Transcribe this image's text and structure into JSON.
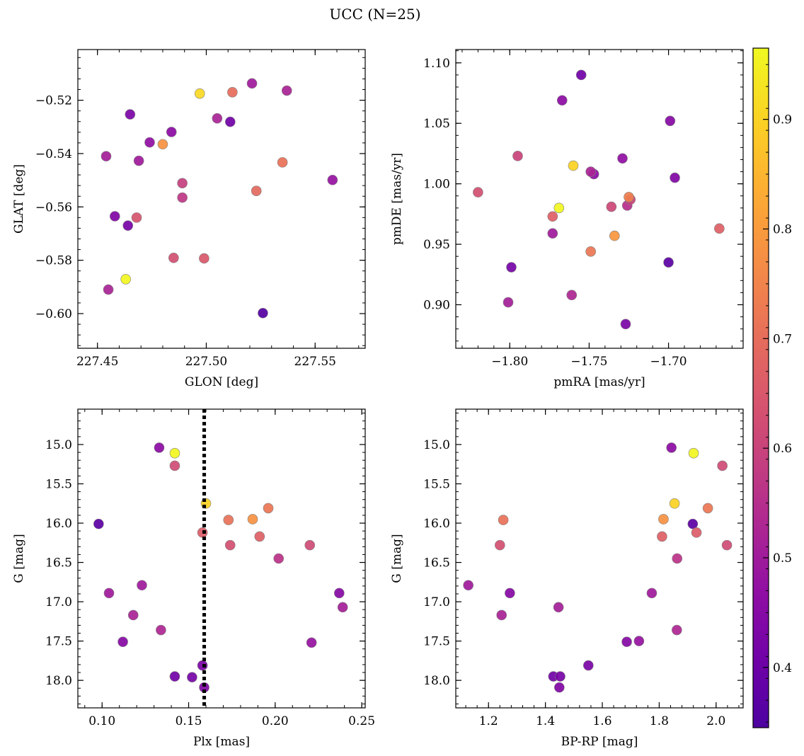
{
  "figure_title": "UCC (N=25)",
  "colorbar": {
    "ticks": [
      0.4,
      0.5,
      0.6,
      0.7,
      0.8,
      0.9
    ],
    "tick_labels": [
      "0.4",
      "0.5",
      "0.6",
      "0.7",
      "0.8",
      "0.9"
    ],
    "range": [
      0.345,
      0.965
    ],
    "colormap": "plasma"
  },
  "colors": {
    "reference_line": "#000000",
    "marker_edge": "#808080"
  },
  "chart_data": [
    {
      "type": "scatter",
      "id": "glon-glat",
      "xlabel": "GLON [deg]",
      "ylabel": "GLAT [deg]",
      "xlim": [
        227.441,
        227.573
      ],
      "ylim": [
        -0.613,
        -0.501
      ],
      "xticks": [
        227.45,
        227.5,
        227.55
      ],
      "xtick_labels": [
        "227.45",
        "227.50",
        "227.55"
      ],
      "yticks": [
        -0.52,
        -0.54,
        -0.56,
        -0.58,
        -0.6
      ],
      "ytick_labels": [
        "−0.52",
        "−0.54",
        "−0.56",
        "−0.58",
        "−0.60"
      ],
      "points": [
        {
          "x": 227.497,
          "y": -0.5175,
          "c": 0.91
        },
        {
          "x": 227.512,
          "y": -0.517,
          "c": 0.7
        },
        {
          "x": 227.521,
          "y": -0.5137,
          "c": 0.5
        },
        {
          "x": 227.537,
          "y": -0.5164,
          "c": 0.52
        },
        {
          "x": 227.465,
          "y": -0.5253,
          "c": 0.43
        },
        {
          "x": 227.505,
          "y": -0.5268,
          "c": 0.52
        },
        {
          "x": 227.511,
          "y": -0.5281,
          "c": 0.41
        },
        {
          "x": 227.484,
          "y": -0.5319,
          "c": 0.46
        },
        {
          "x": 227.474,
          "y": -0.5358,
          "c": 0.47
        },
        {
          "x": 227.48,
          "y": -0.5365,
          "c": 0.78
        },
        {
          "x": 227.454,
          "y": -0.541,
          "c": 0.51
        },
        {
          "x": 227.469,
          "y": -0.5427,
          "c": 0.5
        },
        {
          "x": 227.535,
          "y": -0.5433,
          "c": 0.71
        },
        {
          "x": 227.558,
          "y": -0.5499,
          "c": 0.48
        },
        {
          "x": 227.489,
          "y": -0.5511,
          "c": 0.59
        },
        {
          "x": 227.523,
          "y": -0.554,
          "c": 0.69
        },
        {
          "x": 227.489,
          "y": -0.5565,
          "c": 0.57
        },
        {
          "x": 227.458,
          "y": -0.5635,
          "c": 0.44
        },
        {
          "x": 227.468,
          "y": -0.564,
          "c": 0.64
        },
        {
          "x": 227.464,
          "y": -0.567,
          "c": 0.42
        },
        {
          "x": 227.485,
          "y": -0.5791,
          "c": 0.63
        },
        {
          "x": 227.499,
          "y": -0.5793,
          "c": 0.65
        },
        {
          "x": 227.463,
          "y": -0.5871,
          "c": 0.96
        },
        {
          "x": 227.455,
          "y": -0.591,
          "c": 0.52
        },
        {
          "x": 227.526,
          "y": -0.5998,
          "c": 0.36
        }
      ]
    },
    {
      "type": "scatter",
      "id": "pmra-pmde",
      "xlabel": "pmRA [mas/yr]",
      "ylabel": "pmDE [mas/yr]",
      "xlim": [
        -1.834,
        -1.653
      ],
      "ylim": [
        0.864,
        1.111
      ],
      "xticks": [
        -1.8,
        -1.75,
        -1.7
      ],
      "xtick_labels": [
        "−1.80",
        "−1.75",
        "−1.70"
      ],
      "yticks": [
        1.1,
        1.05,
        1.0,
        0.95,
        0.9
      ],
      "ytick_labels": [
        "1.10",
        "1.05",
        "1.00",
        "0.95",
        "0.90"
      ],
      "points": [
        {
          "x": -1.755,
          "y": 1.09,
          "c": 0.41
        },
        {
          "x": -1.767,
          "y": 1.069,
          "c": 0.46
        },
        {
          "x": -1.699,
          "y": 1.052,
          "c": 0.45
        },
        {
          "x": -1.795,
          "y": 1.023,
          "c": 0.6
        },
        {
          "x": -1.729,
          "y": 1.021,
          "c": 0.47
        },
        {
          "x": -1.76,
          "y": 1.015,
          "c": 0.9
        },
        {
          "x": -1.749,
          "y": 1.01,
          "c": 0.52
        },
        {
          "x": -1.747,
          "y": 1.008,
          "c": 0.46
        },
        {
          "x": -1.696,
          "y": 1.005,
          "c": 0.44
        },
        {
          "x": -1.82,
          "y": 0.993,
          "c": 0.63
        },
        {
          "x": -1.725,
          "y": 0.989,
          "c": 0.74
        },
        {
          "x": -1.724,
          "y": 0.987,
          "c": 0.6
        },
        {
          "x": -1.726,
          "y": 0.982,
          "c": 0.55
        },
        {
          "x": -1.736,
          "y": 0.981,
          "c": 0.61
        },
        {
          "x": -1.769,
          "y": 0.98,
          "c": 0.96
        },
        {
          "x": -1.773,
          "y": 0.973,
          "c": 0.67
        },
        {
          "x": -1.668,
          "y": 0.963,
          "c": 0.67
        },
        {
          "x": -1.773,
          "y": 0.959,
          "c": 0.5
        },
        {
          "x": -1.734,
          "y": 0.957,
          "c": 0.79
        },
        {
          "x": -1.749,
          "y": 0.944,
          "c": 0.72
        },
        {
          "x": -1.7,
          "y": 0.935,
          "c": 0.37
        },
        {
          "x": -1.799,
          "y": 0.931,
          "c": 0.42
        },
        {
          "x": -1.761,
          "y": 0.908,
          "c": 0.53
        },
        {
          "x": -1.801,
          "y": 0.902,
          "c": 0.51
        },
        {
          "x": -1.727,
          "y": 0.884,
          "c": 0.43
        }
      ]
    },
    {
      "type": "scatter",
      "id": "plx-g",
      "xlabel": "Plx [mas]",
      "ylabel": "G [mag]",
      "xlim": [
        0.086,
        0.252
      ],
      "ylim": [
        18.35,
        14.55
      ],
      "y_inverted": true,
      "xticks": [
        0.1,
        0.15,
        0.2,
        0.25
      ],
      "xtick_labels": [
        "0.10",
        "0.15",
        "0.20",
        "0.25"
      ],
      "yticks": [
        15.0,
        15.5,
        16.0,
        16.5,
        17.0,
        17.5,
        18.0
      ],
      "ytick_labels": [
        "15.0",
        "15.5",
        "16.0",
        "16.5",
        "17.0",
        "17.5",
        "18.0"
      ],
      "reference_line": {
        "orientation": "vertical",
        "x": 0.159,
        "style": "dotted"
      },
      "points": [
        {
          "x": 0.133,
          "y": 15.04,
          "c": 0.46
        },
        {
          "x": 0.142,
          "y": 15.11,
          "c": 0.96
        },
        {
          "x": 0.142,
          "y": 15.27,
          "c": 0.62
        },
        {
          "x": 0.16,
          "y": 15.75,
          "c": 0.9
        },
        {
          "x": 0.196,
          "y": 15.81,
          "c": 0.72
        },
        {
          "x": 0.173,
          "y": 15.96,
          "c": 0.71
        },
        {
          "x": 0.187,
          "y": 15.95,
          "c": 0.78
        },
        {
          "x": 0.098,
          "y": 16.01,
          "c": 0.37
        },
        {
          "x": 0.158,
          "y": 16.12,
          "c": 0.66
        },
        {
          "x": 0.191,
          "y": 16.17,
          "c": 0.67
        },
        {
          "x": 0.174,
          "y": 16.28,
          "c": 0.63
        },
        {
          "x": 0.22,
          "y": 16.28,
          "c": 0.62
        },
        {
          "x": 0.202,
          "y": 16.45,
          "c": 0.56
        },
        {
          "x": 0.123,
          "y": 16.79,
          "c": 0.5
        },
        {
          "x": 0.104,
          "y": 16.89,
          "c": 0.5
        },
        {
          "x": 0.237,
          "y": 16.89,
          "c": 0.45
        },
        {
          "x": 0.239,
          "y": 17.07,
          "c": 0.51
        },
        {
          "x": 0.118,
          "y": 17.17,
          "c": 0.52
        },
        {
          "x": 0.134,
          "y": 17.36,
          "c": 0.53
        },
        {
          "x": 0.112,
          "y": 17.51,
          "c": 0.45
        },
        {
          "x": 0.221,
          "y": 17.52,
          "c": 0.48
        },
        {
          "x": 0.158,
          "y": 17.81,
          "c": 0.43
        },
        {
          "x": 0.142,
          "y": 17.95,
          "c": 0.41
        },
        {
          "x": 0.152,
          "y": 17.96,
          "c": 0.42
        },
        {
          "x": 0.159,
          "y": 18.09,
          "c": 0.44
        }
      ]
    },
    {
      "type": "scatter",
      "id": "bprp-g",
      "xlabel": "BP-RP [mag]",
      "ylabel": "G [mag]",
      "xlim": [
        1.085,
        2.095
      ],
      "ylim": [
        18.35,
        14.55
      ],
      "y_inverted": true,
      "xticks": [
        1.2,
        1.4,
        1.6,
        1.8,
        2.0
      ],
      "xtick_labels": [
        "1.2",
        "1.4",
        "1.6",
        "1.8",
        "2.0"
      ],
      "yticks": [
        15.0,
        15.5,
        16.0,
        16.5,
        17.0,
        17.5,
        18.0
      ],
      "ytick_labels": [
        "15.0",
        "15.5",
        "16.0",
        "16.5",
        "17.0",
        "17.5",
        "18.0"
      ],
      "points": [
        {
          "x": 1.843,
          "y": 15.04,
          "c": 0.46
        },
        {
          "x": 1.921,
          "y": 15.11,
          "c": 0.96
        },
        {
          "x": 2.022,
          "y": 15.27,
          "c": 0.62
        },
        {
          "x": 1.854,
          "y": 15.75,
          "c": 0.9
        },
        {
          "x": 1.971,
          "y": 15.81,
          "c": 0.72
        },
        {
          "x": 1.252,
          "y": 15.96,
          "c": 0.71
        },
        {
          "x": 1.815,
          "y": 15.95,
          "c": 0.78
        },
        {
          "x": 1.918,
          "y": 16.01,
          "c": 0.37
        },
        {
          "x": 1.931,
          "y": 16.12,
          "c": 0.66
        },
        {
          "x": 1.81,
          "y": 16.17,
          "c": 0.67
        },
        {
          "x": 1.24,
          "y": 16.28,
          "c": 0.63
        },
        {
          "x": 2.038,
          "y": 16.28,
          "c": 0.62
        },
        {
          "x": 1.863,
          "y": 16.45,
          "c": 0.56
        },
        {
          "x": 1.129,
          "y": 16.79,
          "c": 0.5
        },
        {
          "x": 1.275,
          "y": 16.89,
          "c": 0.45
        },
        {
          "x": 1.774,
          "y": 16.89,
          "c": 0.5
        },
        {
          "x": 1.446,
          "y": 17.07,
          "c": 0.51
        },
        {
          "x": 1.246,
          "y": 17.17,
          "c": 0.52
        },
        {
          "x": 1.862,
          "y": 17.36,
          "c": 0.53
        },
        {
          "x": 1.686,
          "y": 17.51,
          "c": 0.45
        },
        {
          "x": 1.729,
          "y": 17.5,
          "c": 0.48
        },
        {
          "x": 1.551,
          "y": 17.81,
          "c": 0.43
        },
        {
          "x": 1.428,
          "y": 17.95,
          "c": 0.41
        },
        {
          "x": 1.452,
          "y": 17.95,
          "c": 0.42
        },
        {
          "x": 1.449,
          "y": 18.09,
          "c": 0.44
        }
      ]
    }
  ]
}
